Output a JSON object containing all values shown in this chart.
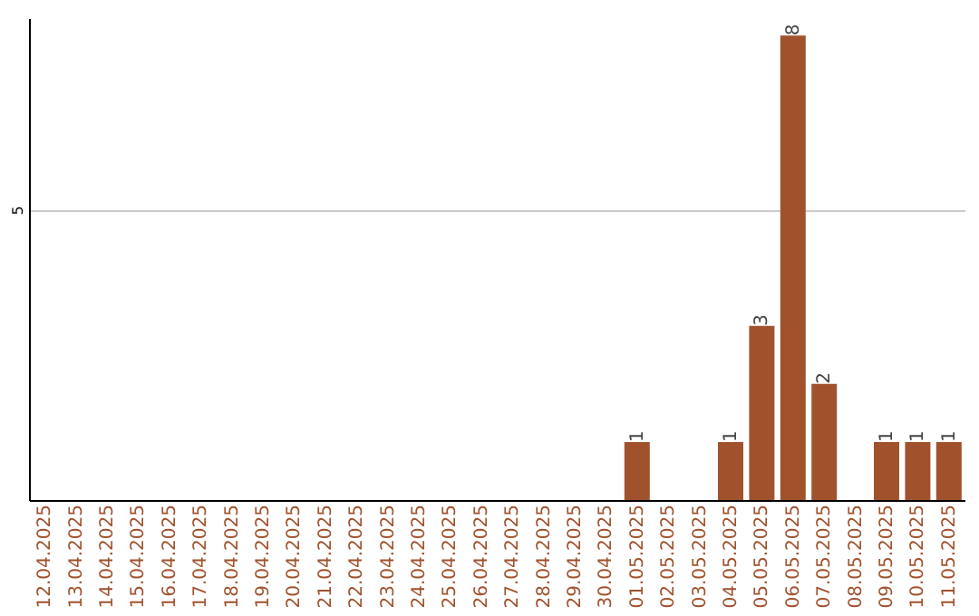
{
  "chart_data": {
    "type": "bar",
    "categories": [
      "12.04.2025",
      "13.04.2025",
      "14.04.2025",
      "15.04.2025",
      "16.04.2025",
      "17.04.2025",
      "18.04.2025",
      "19.04.2025",
      "20.04.2025",
      "21.04.2025",
      "22.04.2025",
      "23.04.2025",
      "24.04.2025",
      "25.04.2025",
      "26.04.2025",
      "27.04.2025",
      "28.04.2025",
      "29.04.2025",
      "30.04.2025",
      "01.05.2025",
      "02.05.2025",
      "03.05.2025",
      "04.05.2025",
      "05.05.2025",
      "06.05.2025",
      "07.05.2025",
      "08.05.2025",
      "09.05.2025",
      "10.05.2025",
      "11.05.2025"
    ],
    "values": [
      null,
      null,
      null,
      null,
      null,
      null,
      null,
      null,
      null,
      null,
      null,
      null,
      null,
      null,
      null,
      null,
      null,
      null,
      null,
      1,
      null,
      null,
      1,
      3,
      8,
      2,
      null,
      1,
      1,
      1
    ],
    "value_labels": [
      null,
      null,
      null,
      null,
      null,
      null,
      null,
      null,
      null,
      null,
      null,
      null,
      null,
      null,
      null,
      null,
      null,
      null,
      null,
      "1",
      null,
      null,
      "1",
      "3",
      "8",
      "2",
      null,
      "1",
      "1",
      "1"
    ],
    "color": "#a0522d",
    "ylim": [
      0,
      8.3
    ],
    "yticks": [
      5
    ],
    "grid": "y"
  }
}
